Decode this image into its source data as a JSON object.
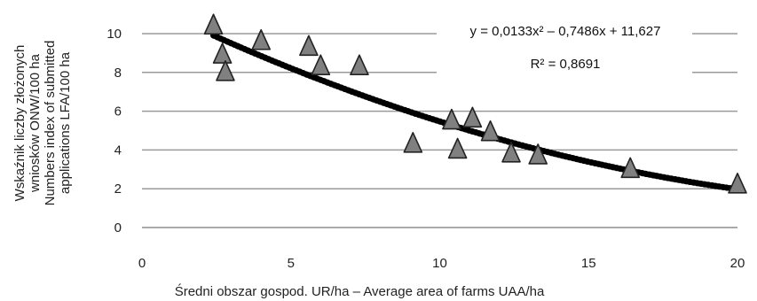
{
  "chart_data": {
    "type": "scatter",
    "title": "",
    "xlabel": "Średni obszar gospod. UR/ha – Average area of farms UAA/ha",
    "ylabel_lines": [
      "Wskaźnik liczby złożonych",
      "wniosków ONW/100 ha",
      "Numbers index of submitted",
      "applications LFA/100 ha"
    ],
    "xlim": [
      0,
      20
    ],
    "ylim": [
      0,
      11
    ],
    "xticks": [
      "0",
      "5",
      "10",
      "15",
      "20"
    ],
    "yticks": [
      "0",
      "2",
      "4",
      "6",
      "8",
      "10"
    ],
    "grid": "horizontal",
    "points": [
      {
        "x": 2.4,
        "y": 10.4
      },
      {
        "x": 2.7,
        "y": 8.9
      },
      {
        "x": 2.8,
        "y": 8.0
      },
      {
        "x": 4.0,
        "y": 9.6
      },
      {
        "x": 5.6,
        "y": 9.3
      },
      {
        "x": 6.0,
        "y": 8.3
      },
      {
        "x": 7.3,
        "y": 8.3
      },
      {
        "x": 9.1,
        "y": 4.3
      },
      {
        "x": 10.4,
        "y": 5.5
      },
      {
        "x": 10.6,
        "y": 4.0
      },
      {
        "x": 11.1,
        "y": 5.6
      },
      {
        "x": 11.7,
        "y": 4.9
      },
      {
        "x": 12.4,
        "y": 3.8
      },
      {
        "x": 13.3,
        "y": 3.7
      },
      {
        "x": 16.4,
        "y": 3.0
      },
      {
        "x": 20.0,
        "y": 2.2
      }
    ],
    "trendline": {
      "type": "polynomial",
      "order": 2,
      "coefficients": [
        0.0133,
        -0.7486,
        11.627
      ],
      "x_range": [
        2.4,
        20.0
      ],
      "equation_text": "y = 0,0133x² – 0,7486x + 11,627",
      "r2_text": "R² = 0,8691"
    },
    "colors": {
      "marker_fill": "#808080",
      "marker_stroke": "#222222",
      "trendline": "#000000",
      "grid": "#9a9a9a"
    }
  }
}
